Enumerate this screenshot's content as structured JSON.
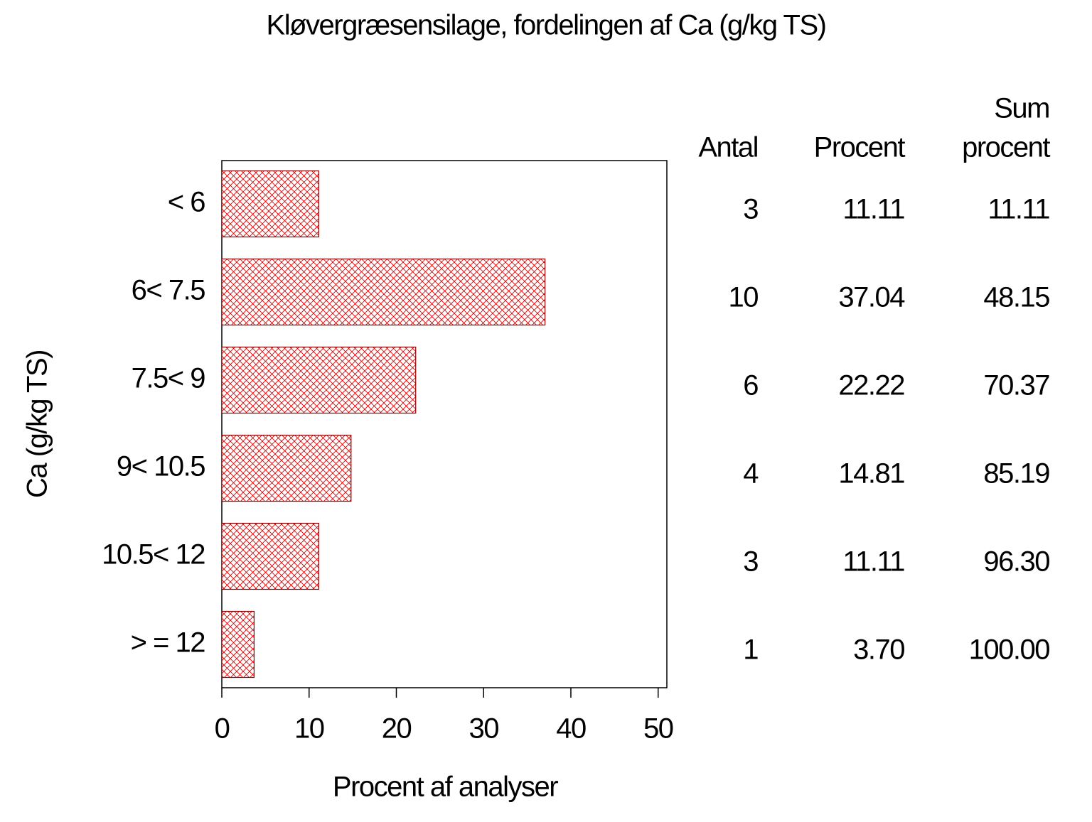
{
  "chart_data": {
    "type": "bar",
    "orientation": "horizontal",
    "title": "Kløvergræsensilage, fordelingen af Ca (g/kg TS)",
    "x_label": "Procent af analyser",
    "y_label": "Ca (g/kg TS)",
    "categories": [
      "< 6",
      "6< 7.5",
      "7.5< 9",
      "9< 10.5",
      "10.5< 12",
      "> = 12"
    ],
    "values": [
      11.11,
      37.04,
      22.22,
      14.81,
      11.11,
      3.7
    ],
    "value_labels": [
      "11.11",
      "37.04",
      "22.22",
      "14.81",
      "11.11",
      "3.70"
    ],
    "color": "#e00000",
    "edge_color": "#8b0000",
    "pattern": "crosshatch",
    "xlim": [
      0,
      51
    ],
    "xticks": [
      0,
      10,
      20,
      30,
      40,
      50
    ],
    "grid": false,
    "table": {
      "headers": [
        [
          "Antal"
        ],
        [
          "Procent"
        ],
        [
          "Sum",
          "procent"
        ]
      ],
      "counts": [
        3,
        10,
        6,
        4,
        3,
        1
      ],
      "cumulative": [
        "11.11",
        "48.15",
        "70.37",
        "85.19",
        "96.30",
        "100.00"
      ]
    }
  }
}
